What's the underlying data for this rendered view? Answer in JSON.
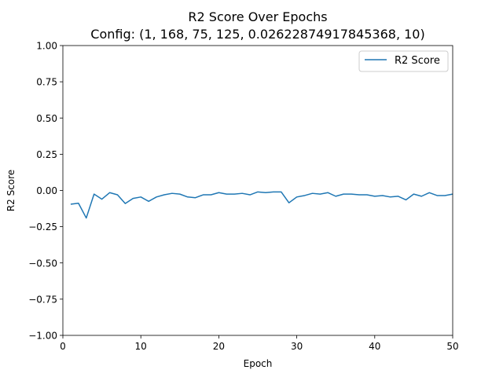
{
  "chart_data": {
    "type": "line",
    "title": "R2 Score Over Epochs",
    "subtitle": "Config: (1, 168, 75, 125, 0.02622874917845368, 10)",
    "xlabel": "Epoch",
    "ylabel": "R2 Score",
    "xlim": [
      0,
      50
    ],
    "ylim": [
      -1.0,
      1.0
    ],
    "xticks": [
      0,
      10,
      20,
      30,
      40,
      50
    ],
    "xtick_labels": [
      "0",
      "10",
      "20",
      "30",
      "40",
      "50"
    ],
    "yticks": [
      -1.0,
      -0.75,
      -0.5,
      -0.25,
      0.0,
      0.25,
      0.5,
      0.75,
      1.0
    ],
    "ytick_labels": [
      "−1.00",
      "−0.75",
      "−0.50",
      "−0.25",
      "0.00",
      "0.25",
      "0.50",
      "0.75",
      "1.00"
    ],
    "grid": false,
    "legend_position": "top-right",
    "series": [
      {
        "name": "R2 Score",
        "color": "#1f77b4",
        "x": [
          1,
          2,
          3,
          4,
          5,
          6,
          7,
          8,
          9,
          10,
          11,
          12,
          13,
          14,
          15,
          16,
          17,
          18,
          19,
          20,
          21,
          22,
          23,
          24,
          25,
          26,
          27,
          28,
          29,
          30,
          31,
          32,
          33,
          34,
          35,
          36,
          37,
          38,
          39,
          40,
          41,
          42,
          43,
          44,
          45,
          46,
          47,
          48,
          49,
          50
        ],
        "y": [
          -0.095,
          -0.088,
          -0.19,
          -0.025,
          -0.06,
          -0.015,
          -0.03,
          -0.09,
          -0.055,
          -0.045,
          -0.075,
          -0.045,
          -0.03,
          -0.02,
          -0.025,
          -0.045,
          -0.05,
          -0.03,
          -0.03,
          -0.015,
          -0.025,
          -0.025,
          -0.02,
          -0.03,
          -0.01,
          -0.015,
          -0.01,
          -0.01,
          -0.085,
          -0.045,
          -0.035,
          -0.02,
          -0.025,
          -0.015,
          -0.04,
          -0.025,
          -0.025,
          -0.03,
          -0.03,
          -0.04,
          -0.035,
          -0.045,
          -0.04,
          -0.065,
          -0.025,
          -0.04,
          -0.015,
          -0.035,
          -0.035,
          -0.025
        ]
      }
    ]
  }
}
